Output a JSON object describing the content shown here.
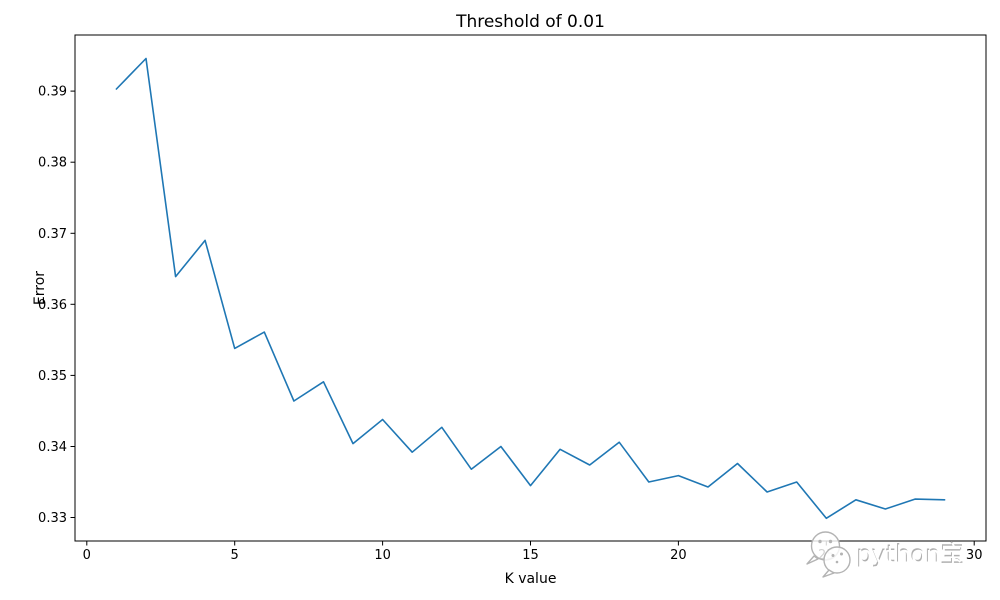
{
  "figure": {
    "background": "#ffffff",
    "watermark": {
      "text": "python宝",
      "icon": "wechat-bubbles-icon",
      "text_color": "#c0c0c0"
    }
  },
  "chart_data": {
    "type": "line",
    "title": "Threshold of 0.01",
    "xlabel": "K value",
    "ylabel": "Error",
    "x": [
      1,
      2,
      3,
      4,
      5,
      6,
      7,
      8,
      9,
      10,
      11,
      12,
      13,
      14,
      15,
      16,
      17,
      18,
      19,
      20,
      21,
      22,
      23,
      24,
      25,
      26,
      27,
      28,
      29
    ],
    "values": [
      0.3903,
      0.3946,
      0.3639,
      0.369,
      0.3538,
      0.3561,
      0.3464,
      0.3491,
      0.3404,
      0.3438,
      0.3392,
      0.3427,
      0.3368,
      0.34,
      0.3345,
      0.3396,
      0.3374,
      0.3406,
      0.335,
      0.3359,
      0.3343,
      0.3376,
      0.3336,
      0.335,
      0.3299,
      0.3325,
      0.3312,
      0.3326,
      0.3325
    ],
    "series_name": "Error",
    "line_color": "#1f77b4",
    "axis_color": "#000000",
    "xlim": [
      -0.4,
      30.4
    ],
    "ylim": [
      0.3267,
      0.3979
    ],
    "xticks": [
      0,
      5,
      10,
      15,
      20,
      25,
      30
    ],
    "xtick_labels": [
      "0",
      "5",
      "10",
      "15",
      "20",
      "25",
      "30"
    ],
    "yticks": [
      0.33,
      0.34,
      0.35,
      0.36,
      0.37,
      0.38,
      0.39
    ],
    "ytick_labels": [
      "0.33",
      "0.34",
      "0.35",
      "0.36",
      "0.37",
      "0.38",
      "0.39"
    ],
    "grid": false,
    "legend": "none"
  }
}
